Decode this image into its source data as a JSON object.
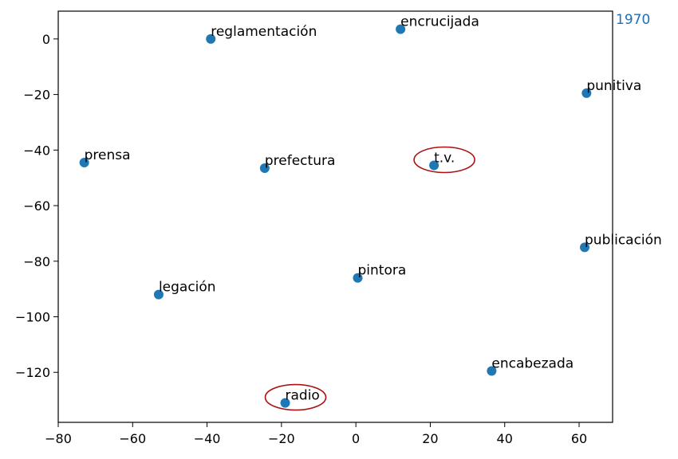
{
  "chart_data": {
    "type": "scatter",
    "title": "",
    "xlabel": "",
    "ylabel": "",
    "corner_label": "1970",
    "xlim": [
      -80,
      69
    ],
    "ylim": [
      -138,
      10
    ],
    "xticks": [
      -80,
      -60,
      -40,
      -20,
      0,
      20,
      40,
      60
    ],
    "yticks": [
      0,
      -20,
      -40,
      -60,
      -80,
      -100,
      -120
    ],
    "grid": false,
    "point_color": "#1f77b4",
    "highlight_color": "#aa1111",
    "corner_label_color": "#1f6fb4",
    "points": [
      {
        "label": "reglamentación",
        "x": -39,
        "y": 0,
        "highlight": false
      },
      {
        "label": "encrucijada",
        "x": 12,
        "y": 3.5,
        "highlight": false
      },
      {
        "label": "punitiva",
        "x": 62,
        "y": -19.5,
        "highlight": false
      },
      {
        "label": "prensa",
        "x": -73,
        "y": -44.5,
        "highlight": false
      },
      {
        "label": "prefectura",
        "x": -24.5,
        "y": -46.5,
        "highlight": false
      },
      {
        "label": "t.v.",
        "x": 21,
        "y": -45.5,
        "highlight": true
      },
      {
        "label": "publicación",
        "x": 61.5,
        "y": -75,
        "highlight": false
      },
      {
        "label": "pintora",
        "x": 0.5,
        "y": -86,
        "highlight": false
      },
      {
        "label": "legación",
        "x": -53,
        "y": -92,
        "highlight": false
      },
      {
        "label": "encabezada",
        "x": 36.5,
        "y": -119.5,
        "highlight": false
      },
      {
        "label": "radio",
        "x": -19,
        "y": -131,
        "highlight": true
      }
    ]
  }
}
